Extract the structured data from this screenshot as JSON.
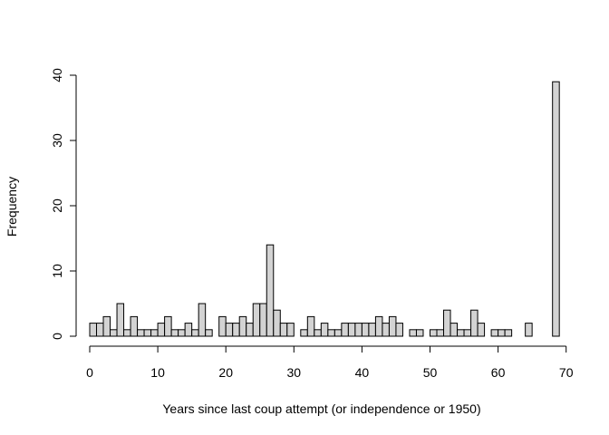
{
  "chart_data": {
    "type": "bar",
    "title": "",
    "xlabel": "Years since last coup attempt (or independence or 1950)",
    "ylabel": "Frequency",
    "xlim": [
      0,
      70
    ],
    "ylim": [
      0,
      40
    ],
    "x_ticks": [
      "0",
      "10",
      "20",
      "30",
      "40",
      "50",
      "60",
      "70"
    ],
    "y_ticks": [
      "0",
      "10",
      "20",
      "30",
      "40"
    ],
    "bin_width": 1,
    "bin_start": 0,
    "values": [
      2,
      2,
      3,
      1,
      5,
      1,
      3,
      1,
      1,
      1,
      2,
      3,
      1,
      1,
      2,
      1,
      5,
      1,
      0,
      3,
      2,
      2,
      3,
      2,
      5,
      5,
      14,
      4,
      2,
      2,
      0,
      1,
      3,
      1,
      2,
      1,
      1,
      2,
      2,
      2,
      2,
      2,
      3,
      2,
      3,
      2,
      0,
      1,
      1,
      0,
      1,
      1,
      4,
      2,
      1,
      1,
      4,
      2,
      0,
      1,
      1,
      1,
      0,
      0,
      2,
      0,
      0,
      0,
      39
    ],
    "bar_color": "#d3d3d3",
    "grid": false,
    "legend": "none"
  }
}
